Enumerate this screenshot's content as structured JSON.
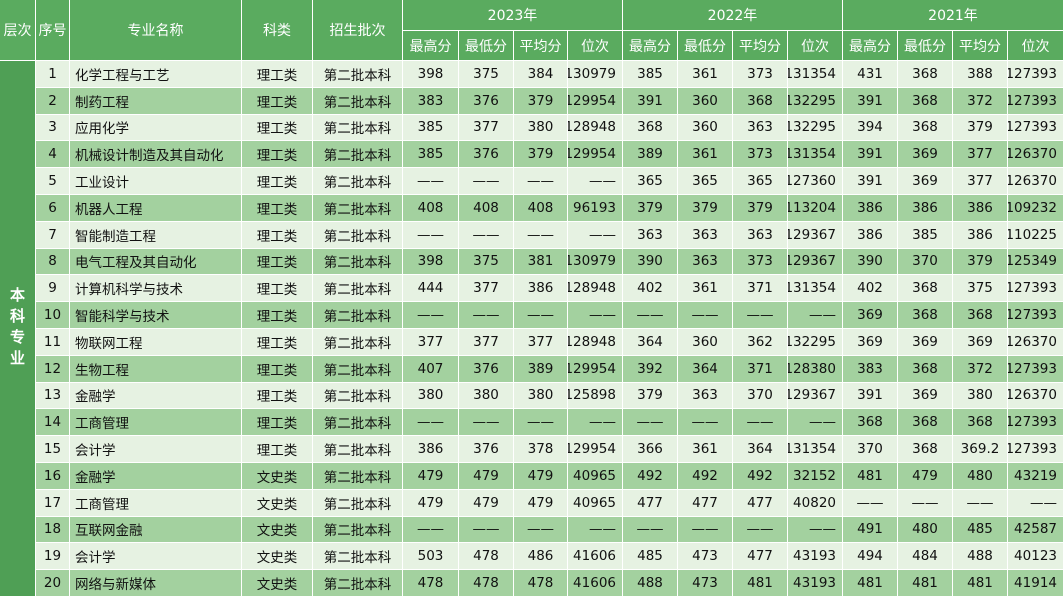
{
  "header": {
    "level": "层次",
    "index": "序号",
    "major": "专业名称",
    "category": "科类",
    "batch": "招生批次",
    "years": [
      {
        "year": "2023年",
        "metrics": [
          "最高分",
          "最低分",
          "平均分",
          "位次"
        ]
      },
      {
        "year": "2022年",
        "metrics": [
          "最高分",
          "最低分",
          "平均分",
          "位次"
        ]
      },
      {
        "year": "2021年",
        "metrics": [
          "最高分",
          "最低分",
          "平均分",
          "位次"
        ]
      }
    ]
  },
  "section": "本科专业",
  "rows": [
    [
      "1",
      "化学工程与工艺",
      "理工类",
      "第二批本科",
      "398",
      "375",
      "384",
      "130979",
      "385",
      "361",
      "373",
      "131354",
      "431",
      "368",
      "388",
      "127393"
    ],
    [
      "2",
      "制药工程",
      "理工类",
      "第二批本科",
      "383",
      "376",
      "379",
      "129954",
      "391",
      "360",
      "368",
      "132295",
      "391",
      "368",
      "372",
      "127393"
    ],
    [
      "3",
      "应用化学",
      "理工类",
      "第二批本科",
      "385",
      "377",
      "380",
      "128948",
      "368",
      "360",
      "363",
      "132295",
      "394",
      "368",
      "379",
      "127393"
    ],
    [
      "4",
      "机械设计制造及其自动化",
      "理工类",
      "第二批本科",
      "385",
      "376",
      "379",
      "129954",
      "389",
      "361",
      "373",
      "131354",
      "391",
      "369",
      "377",
      "126370"
    ],
    [
      "5",
      "工业设计",
      "理工类",
      "第二批本科",
      "——",
      "——",
      "——",
      "——",
      "365",
      "365",
      "365",
      "127360",
      "391",
      "369",
      "377",
      "126370"
    ],
    [
      "6",
      "机器人工程",
      "理工类",
      "第二批本科",
      "408",
      "408",
      "408",
      "96193",
      "379",
      "379",
      "379",
      "113204",
      "386",
      "386",
      "386",
      "109232"
    ],
    [
      "7",
      "智能制造工程",
      "理工类",
      "第二批本科",
      "——",
      "——",
      "——",
      "——",
      "363",
      "363",
      "363",
      "129367",
      "386",
      "385",
      "386",
      "110225"
    ],
    [
      "8",
      "电气工程及其自动化",
      "理工类",
      "第二批本科",
      "398",
      "375",
      "381",
      "130979",
      "390",
      "363",
      "373",
      "129367",
      "390",
      "370",
      "379",
      "125349"
    ],
    [
      "9",
      "计算机科学与技术",
      "理工类",
      "第二批本科",
      "444",
      "377",
      "386",
      "128948",
      "402",
      "361",
      "371",
      "131354",
      "402",
      "368",
      "375",
      "127393"
    ],
    [
      "10",
      "智能科学与技术",
      "理工类",
      "第二批本科",
      "——",
      "——",
      "——",
      "——",
      "——",
      "——",
      "——",
      "——",
      "369",
      "368",
      "368",
      "127393"
    ],
    [
      "11",
      "物联网工程",
      "理工类",
      "第二批本科",
      "377",
      "377",
      "377",
      "128948",
      "364",
      "360",
      "362",
      "132295",
      "369",
      "369",
      "369",
      "126370"
    ],
    [
      "12",
      "生物工程",
      "理工类",
      "第二批本科",
      "407",
      "376",
      "389",
      "129954",
      "392",
      "364",
      "371",
      "128380",
      "383",
      "368",
      "372",
      "127393"
    ],
    [
      "13",
      "金融学",
      "理工类",
      "第二批本科",
      "380",
      "380",
      "380",
      "125898",
      "379",
      "363",
      "370",
      "129367",
      "391",
      "369",
      "380",
      "126370"
    ],
    [
      "14",
      "工商管理",
      "理工类",
      "第二批本科",
      "——",
      "——",
      "——",
      "——",
      "——",
      "——",
      "——",
      "——",
      "368",
      "368",
      "368",
      "127393"
    ],
    [
      "15",
      "会计学",
      "理工类",
      "第二批本科",
      "386",
      "376",
      "378",
      "129954",
      "366",
      "361",
      "364",
      "131354",
      "370",
      "368",
      "369.2",
      "127393"
    ],
    [
      "16",
      "金融学",
      "文史类",
      "第二批本科",
      "479",
      "479",
      "479",
      "40965",
      "492",
      "492",
      "492",
      "32152",
      "481",
      "479",
      "480",
      "43219"
    ],
    [
      "17",
      "工商管理",
      "文史类",
      "第二批本科",
      "479",
      "479",
      "479",
      "40965",
      "477",
      "477",
      "477",
      "40820",
      "——",
      "——",
      "——",
      "——"
    ],
    [
      "18",
      "互联网金融",
      "文史类",
      "第二批本科",
      "——",
      "——",
      "——",
      "——",
      "——",
      "——",
      "——",
      "——",
      "491",
      "480",
      "485",
      "42587"
    ],
    [
      "19",
      "会计学",
      "文史类",
      "第二批本科",
      "503",
      "478",
      "486",
      "41606",
      "485",
      "473",
      "477",
      "43193",
      "494",
      "484",
      "488",
      "40123"
    ],
    [
      "20",
      "网络与新媒体",
      "文史类",
      "第二批本科",
      "478",
      "478",
      "478",
      "41606",
      "488",
      "473",
      "481",
      "43193",
      "481",
      "481",
      "481",
      "41914"
    ]
  ]
}
